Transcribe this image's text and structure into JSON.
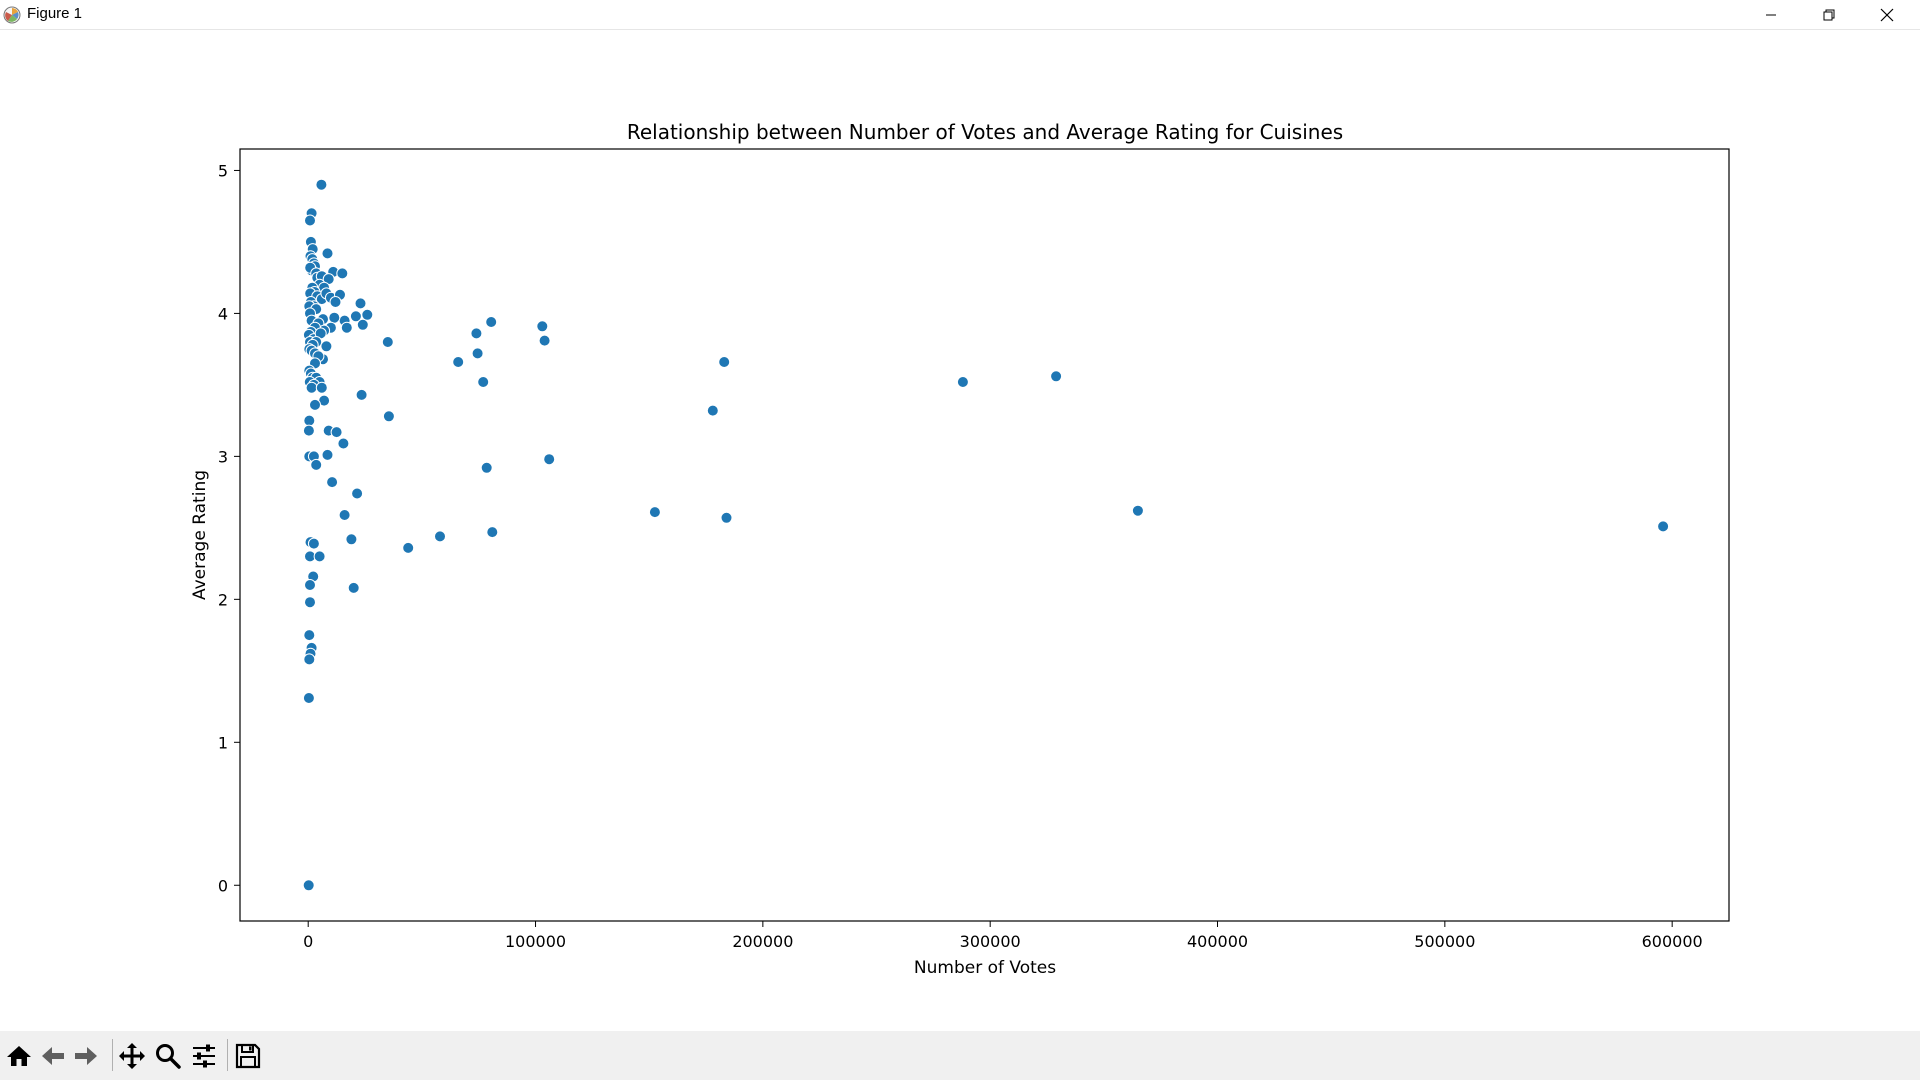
{
  "window": {
    "title": "Figure 1",
    "icons": [
      "matplotlib-icon",
      "minimize-icon",
      "restore-icon",
      "close-icon"
    ]
  },
  "toolbar": {
    "buttons": [
      "home-icon",
      "back-arrow-icon",
      "forward-arrow-icon",
      "pan-icon",
      "zoom-icon",
      "configure-subplots-icon",
      "save-icon"
    ]
  },
  "colors": {
    "marker": "#1f77b4",
    "marker_edge": "#ffffff",
    "toolbar_bg": "#f0f0f0"
  },
  "chart_data": {
    "type": "scatter",
    "title": "Relationship between Number of Votes and Average Rating for Cuisines",
    "xlabel": "Number of Votes",
    "ylabel": "Average Rating",
    "xlim": [
      -30000,
      625000
    ],
    "ylim": [
      -0.25,
      5.15
    ],
    "xticks": [
      0,
      100000,
      200000,
      300000,
      400000,
      500000,
      600000
    ],
    "xtick_labels": [
      "0",
      "100000",
      "200000",
      "300000",
      "400000",
      "500000",
      "600000"
    ],
    "yticks": [
      0,
      1,
      2,
      3,
      4,
      5
    ],
    "ytick_labels": [
      "0",
      "1",
      "2",
      "3",
      "4",
      "5"
    ],
    "grid": false,
    "legend": false,
    "points": [
      [
        5800,
        4.9
      ],
      [
        1500,
        4.7
      ],
      [
        800,
        4.65
      ],
      [
        1200,
        4.5
      ],
      [
        2000,
        4.45
      ],
      [
        1000,
        4.4
      ],
      [
        1800,
        4.38
      ],
      [
        2500,
        4.35
      ],
      [
        3000,
        4.33
      ],
      [
        1500,
        4.3
      ],
      [
        900,
        4.32
      ],
      [
        3500,
        4.28
      ],
      [
        4000,
        4.25
      ],
      [
        6000,
        4.26
      ],
      [
        8500,
        4.42
      ],
      [
        11000,
        4.29
      ],
      [
        15000,
        4.28
      ],
      [
        9000,
        4.24
      ],
      [
        5000,
        4.2
      ],
      [
        7000,
        4.18
      ],
      [
        1800,
        4.18
      ],
      [
        2800,
        4.15
      ],
      [
        900,
        4.14
      ],
      [
        4000,
        4.12
      ],
      [
        6000,
        4.1
      ],
      [
        8000,
        4.14
      ],
      [
        10000,
        4.11
      ],
      [
        14000,
        4.13
      ],
      [
        12000,
        4.08
      ],
      [
        1200,
        4.08
      ],
      [
        2500,
        4.05
      ],
      [
        500,
        4.05
      ],
      [
        3500,
        4.03
      ],
      [
        800,
        4.0
      ],
      [
        23000,
        4.07
      ],
      [
        21000,
        3.98
      ],
      [
        26000,
        3.99
      ],
      [
        16000,
        3.95
      ],
      [
        11500,
        3.97
      ],
      [
        6500,
        3.96
      ],
      [
        1500,
        3.95
      ],
      [
        4500,
        3.93
      ],
      [
        10000,
        3.9
      ],
      [
        17000,
        3.9
      ],
      [
        7000,
        3.88
      ],
      [
        24000,
        3.92
      ],
      [
        3000,
        3.9
      ],
      [
        1200,
        3.87
      ],
      [
        300,
        3.85
      ],
      [
        2500,
        3.82
      ],
      [
        5500,
        3.86
      ],
      [
        800,
        3.8
      ],
      [
        3500,
        3.8
      ],
      [
        2000,
        3.78
      ],
      [
        8000,
        3.77
      ],
      [
        500,
        3.75
      ],
      [
        1500,
        3.74
      ],
      [
        3000,
        3.72
      ],
      [
        6500,
        3.68
      ],
      [
        4500,
        3.7
      ],
      [
        3000,
        3.65
      ],
      [
        500,
        3.6
      ],
      [
        1200,
        3.58
      ],
      [
        2000,
        3.55
      ],
      [
        3500,
        3.55
      ],
      [
        700,
        3.52
      ],
      [
        5000,
        3.52
      ],
      [
        2500,
        3.5
      ],
      [
        1500,
        3.48
      ],
      [
        6000,
        3.48
      ],
      [
        7000,
        3.39
      ],
      [
        3000,
        3.36
      ],
      [
        500,
        3.25
      ],
      [
        300,
        3.18
      ],
      [
        9000,
        3.18
      ],
      [
        12500,
        3.17
      ],
      [
        15500,
        3.09
      ],
      [
        8500,
        3.01
      ],
      [
        500,
        3.0
      ],
      [
        2500,
        3.0
      ],
      [
        3500,
        2.94
      ],
      [
        10500,
        2.82
      ],
      [
        21500,
        2.74
      ],
      [
        16000,
        2.59
      ],
      [
        19000,
        2.42
      ],
      [
        1000,
        2.4
      ],
      [
        2500,
        2.39
      ],
      [
        800,
        2.3
      ],
      [
        5000,
        2.3
      ],
      [
        2200,
        2.16
      ],
      [
        800,
        2.1
      ],
      [
        20000,
        2.08
      ],
      [
        800,
        1.98
      ],
      [
        500,
        1.75
      ],
      [
        1500,
        1.66
      ],
      [
        1000,
        1.62
      ],
      [
        500,
        1.58
      ],
      [
        300,
        1.31
      ],
      [
        200,
        0.0
      ],
      [
        35000,
        3.8
      ],
      [
        35500,
        3.28
      ],
      [
        23500,
        3.43
      ],
      [
        44000,
        2.36
      ],
      [
        58000,
        2.44
      ],
      [
        66000,
        3.66
      ],
      [
        74000,
        3.86
      ],
      [
        74500,
        3.72
      ],
      [
        77000,
        3.52
      ],
      [
        78500,
        2.92
      ],
      [
        80500,
        3.94
      ],
      [
        81000,
        2.47
      ],
      [
        103000,
        3.91
      ],
      [
        104000,
        3.81
      ],
      [
        106000,
        2.98
      ],
      [
        152500,
        2.61
      ],
      [
        178000,
        3.32
      ],
      [
        183000,
        3.66
      ],
      [
        184000,
        2.57
      ],
      [
        288000,
        3.52
      ],
      [
        329000,
        3.56
      ],
      [
        365000,
        2.62
      ],
      [
        596000,
        2.51
      ]
    ]
  }
}
